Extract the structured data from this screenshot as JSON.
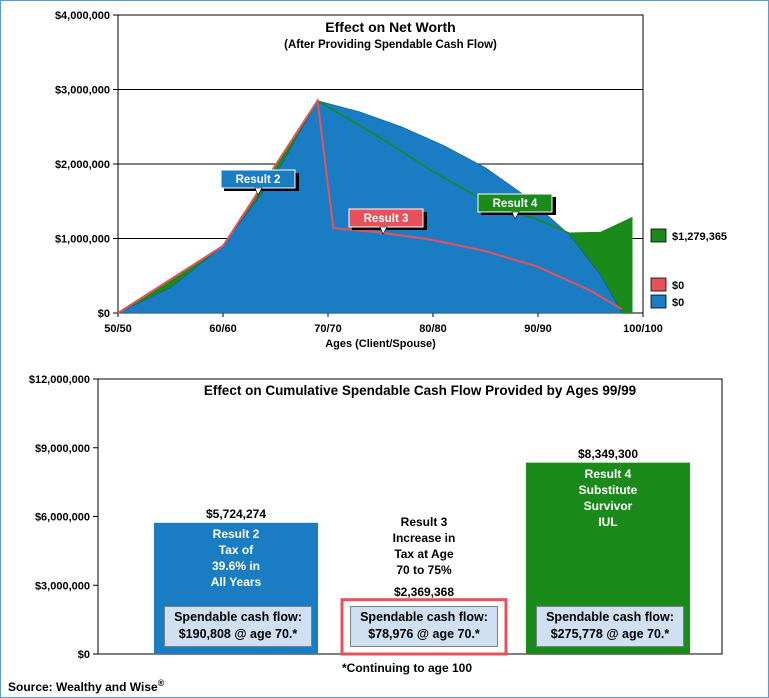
{
  "chart_data": [
    {
      "type": "area",
      "title": "Effect on Net Worth",
      "subtitle": "(After Providing Spendable Cash Flow)",
      "xlabel": "Ages (Client/Spouse)",
      "x_tick_labels": [
        "50/50",
        "60/60",
        "70/70",
        "80/80",
        "90/90",
        "100/100"
      ],
      "xlim": [
        50,
        100
      ],
      "y_tick_labels": [
        "$0",
        "$1,000,000",
        "$2,000,000",
        "$3,000,000",
        "$4,000,000"
      ],
      "ylim": [
        0,
        4000000
      ],
      "series": [
        {
          "name": "Result 2",
          "color": "#1a7dc4",
          "x": [
            50,
            55,
            60,
            61,
            65,
            69,
            73,
            77,
            81,
            85,
            89,
            93,
            96,
            98
          ],
          "y": [
            0,
            340000,
            900000,
            1100000,
            1850000,
            2850000,
            2700000,
            2500000,
            2250000,
            1950000,
            1550000,
            1050000,
            500000,
            0
          ]
        },
        {
          "name": "Result 3",
          "color": "#e8515a",
          "x": [
            50,
            60,
            69,
            70.5,
            75,
            80,
            85,
            90,
            95,
            98
          ],
          "y": [
            0,
            900000,
            2850000,
            1140000,
            1080000,
            980000,
            830000,
            620000,
            300000,
            50000
          ]
        },
        {
          "name": "Result 4",
          "color": "#1a8a1a",
          "x": [
            50,
            60,
            69,
            75,
            80,
            85,
            90,
            93,
            96,
            99
          ],
          "y": [
            0,
            900000,
            2850000,
            2350000,
            1900000,
            1500000,
            1250000,
            1070000,
            1080000,
            1279365
          ]
        }
      ],
      "callouts": [
        "Result 2",
        "Result 3",
        "Result 4"
      ],
      "legend": [
        {
          "label": "$1,279,365",
          "color": "#1a8a1a"
        },
        {
          "label": "$0",
          "color": "#e8515a"
        },
        {
          "label": "$0",
          "color": "#1a7dc4"
        }
      ]
    },
    {
      "type": "bar",
      "title": "Effect on Cumulative Spendable Cash Flow Provided by Ages 99/99",
      "y_tick_labels": [
        "$0",
        "$3,000,000",
        "$6,000,000",
        "$9,000,000",
        "$12,000,000"
      ],
      "ylim": [
        0,
        12000000
      ],
      "bars": [
        {
          "value": 5724274,
          "value_label": "$5,724,274",
          "color": "#1a7dc4",
          "label_lines": [
            "Result 2",
            "Tax of",
            "39.6% in",
            "All Years"
          ],
          "cash_flow": [
            "Spendable cash flow:",
            "$190,808 @ age 70.*"
          ]
        },
        {
          "value": 2369368,
          "value_label": "$2,369,368",
          "color": "#e8515a",
          "label_lines": [
            "Result 3",
            "Increase in",
            "Tax at Age",
            "70 to 75%"
          ],
          "cash_flow": [
            "Spendable cash flow:",
            "$78,976 @ age 70.*"
          ]
        },
        {
          "value": 8349300,
          "value_label": "$8,349,300",
          "color": "#1a8a1a",
          "label_lines": [
            "Result 4",
            "Substitute",
            "Survivor",
            "IUL"
          ],
          "cash_flow": [
            "Spendable cash flow:",
            "$275,778 @ age 70.*"
          ]
        }
      ]
    }
  ],
  "footnote": "*Continuing to age 100",
  "source": "Source: Wealthy and Wise",
  "source_sup": "®"
}
